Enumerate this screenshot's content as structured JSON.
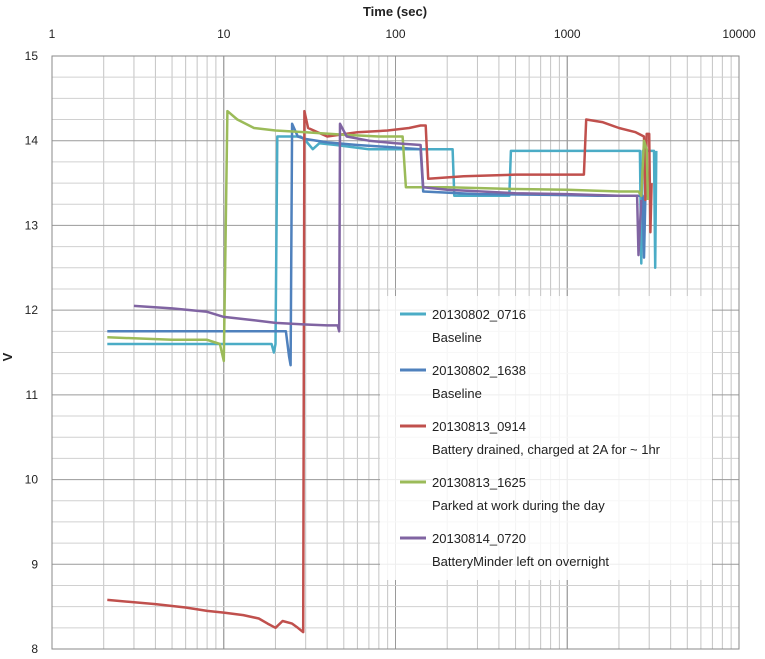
{
  "chart_data": {
    "type": "line",
    "title": "",
    "xlabel": "Time (sec)",
    "ylabel": "V",
    "x_scale": "log",
    "xlim": [
      1,
      10000
    ],
    "ylim": [
      8,
      15
    ],
    "x_tick_labels": [
      "1",
      "10",
      "100",
      "1000",
      "10000"
    ],
    "y_tick_labels": [
      "8",
      "9",
      "10",
      "11",
      "12",
      "13",
      "14",
      "15"
    ],
    "grid": true,
    "legend_position": "lower-right",
    "series": [
      {
        "name": "20130802_0716",
        "description": "Baseline",
        "color": "#4bacc6",
        "points": [
          [
            2.1,
            11.6
          ],
          [
            10,
            11.6
          ],
          [
            15,
            11.6
          ],
          [
            19,
            11.6
          ],
          [
            19.6,
            11.5
          ],
          [
            20,
            11.6
          ],
          [
            20.5,
            14.05
          ],
          [
            25,
            14.05
          ],
          [
            28,
            14.05
          ],
          [
            30,
            14.0
          ],
          [
            33,
            13.9
          ],
          [
            36,
            13.97
          ],
          [
            45,
            13.95
          ],
          [
            70,
            13.9
          ],
          [
            120,
            13.9
          ],
          [
            200,
            13.9
          ],
          [
            215,
            13.9
          ],
          [
            220,
            13.35
          ],
          [
            300,
            13.35
          ],
          [
            460,
            13.35
          ],
          [
            470,
            13.88
          ],
          [
            800,
            13.88
          ],
          [
            1500,
            13.88
          ],
          [
            2200,
            13.88
          ],
          [
            2650,
            13.88
          ],
          [
            2700,
            12.55
          ],
          [
            2750,
            13.88
          ],
          [
            3200,
            13.88
          ],
          [
            3250,
            12.5
          ],
          [
            3300,
            13.88
          ]
        ]
      },
      {
        "name": "20130802_1638",
        "description": "Baseline",
        "color": "#4f81bd",
        "points": [
          [
            2.1,
            11.75
          ],
          [
            10,
            11.75
          ],
          [
            20,
            11.75
          ],
          [
            23,
            11.75
          ],
          [
            24,
            11.45
          ],
          [
            24.5,
            11.35
          ],
          [
            25,
            14.2
          ],
          [
            27,
            14.05
          ],
          [
            30,
            14.02
          ],
          [
            40,
            13.98
          ],
          [
            60,
            13.95
          ],
          [
            100,
            13.92
          ],
          [
            140,
            13.9
          ],
          [
            145,
            13.4
          ],
          [
            300,
            13.37
          ],
          [
            800,
            13.36
          ],
          [
            1500,
            13.35
          ],
          [
            2500,
            13.35
          ],
          [
            2750,
            13.35
          ],
          [
            2800,
            12.62
          ],
          [
            2850,
            13.35
          ],
          [
            3000,
            13.35
          ]
        ]
      },
      {
        "name": "20130813_0914",
        "description": "Battery drained, charged at 2A for ~ 1hr",
        "color": "#c0504d",
        "points": [
          [
            2.1,
            8.58
          ],
          [
            4,
            8.53
          ],
          [
            6,
            8.49
          ],
          [
            8,
            8.45
          ],
          [
            10,
            8.43
          ],
          [
            13,
            8.4
          ],
          [
            16,
            8.36
          ],
          [
            18,
            8.3
          ],
          [
            20,
            8.25
          ],
          [
            22,
            8.33
          ],
          [
            25,
            8.3
          ],
          [
            27,
            8.25
          ],
          [
            29,
            8.2
          ],
          [
            29.5,
            14.35
          ],
          [
            31,
            14.15
          ],
          [
            40,
            14.05
          ],
          [
            60,
            14.1
          ],
          [
            90,
            14.12
          ],
          [
            120,
            14.15
          ],
          [
            140,
            14.18
          ],
          [
            150,
            14.18
          ],
          [
            155,
            13.55
          ],
          [
            250,
            13.58
          ],
          [
            500,
            13.6
          ],
          [
            800,
            13.6
          ],
          [
            1250,
            13.6
          ],
          [
            1290,
            14.25
          ],
          [
            1600,
            14.22
          ],
          [
            2000,
            14.15
          ],
          [
            2500,
            14.1
          ],
          [
            2800,
            14.05
          ],
          [
            2850,
            13.3
          ],
          [
            2900,
            14.08
          ],
          [
            3000,
            14.08
          ],
          [
            3050,
            12.92
          ],
          [
            3100,
            13.5
          ]
        ]
      },
      {
        "name": "20130813_1625",
        "description": "Parked at work during the day",
        "color": "#9bbb59",
        "points": [
          [
            2.1,
            11.68
          ],
          [
            5,
            11.65
          ],
          [
            8,
            11.65
          ],
          [
            9.5,
            11.6
          ],
          [
            10,
            11.4
          ],
          [
            10.5,
            14.35
          ],
          [
            12,
            14.25
          ],
          [
            15,
            14.15
          ],
          [
            20,
            14.12
          ],
          [
            30,
            14.1
          ],
          [
            50,
            14.07
          ],
          [
            80,
            14.05
          ],
          [
            110,
            14.05
          ],
          [
            115,
            13.45
          ],
          [
            200,
            13.45
          ],
          [
            500,
            13.43
          ],
          [
            1000,
            13.42
          ],
          [
            2000,
            13.4
          ],
          [
            2500,
            13.4
          ],
          [
            2600,
            13.4
          ],
          [
            2700,
            13.35
          ],
          [
            2800,
            14.0
          ],
          [
            2900,
            13.9
          ],
          [
            2950,
            13.3
          ]
        ]
      },
      {
        "name": "20130814_0720",
        "description": "BatteryMinder left on overnight",
        "color": "#8064a2",
        "points": [
          [
            3,
            12.05
          ],
          [
            5,
            12.02
          ],
          [
            8,
            11.98
          ],
          [
            10,
            11.92
          ],
          [
            15,
            11.88
          ],
          [
            20,
            11.85
          ],
          [
            30,
            11.83
          ],
          [
            40,
            11.82
          ],
          [
            46,
            11.82
          ],
          [
            47,
            11.75
          ],
          [
            47.5,
            14.2
          ],
          [
            52,
            14.05
          ],
          [
            70,
            14.0
          ],
          [
            100,
            13.97
          ],
          [
            140,
            13.95
          ],
          [
            145,
            13.45
          ],
          [
            200,
            13.42
          ],
          [
            500,
            13.38
          ],
          [
            1000,
            13.37
          ],
          [
            2000,
            13.35
          ],
          [
            2550,
            13.35
          ],
          [
            2600,
            12.65
          ],
          [
            2700,
            13.3
          ]
        ]
      }
    ]
  }
}
